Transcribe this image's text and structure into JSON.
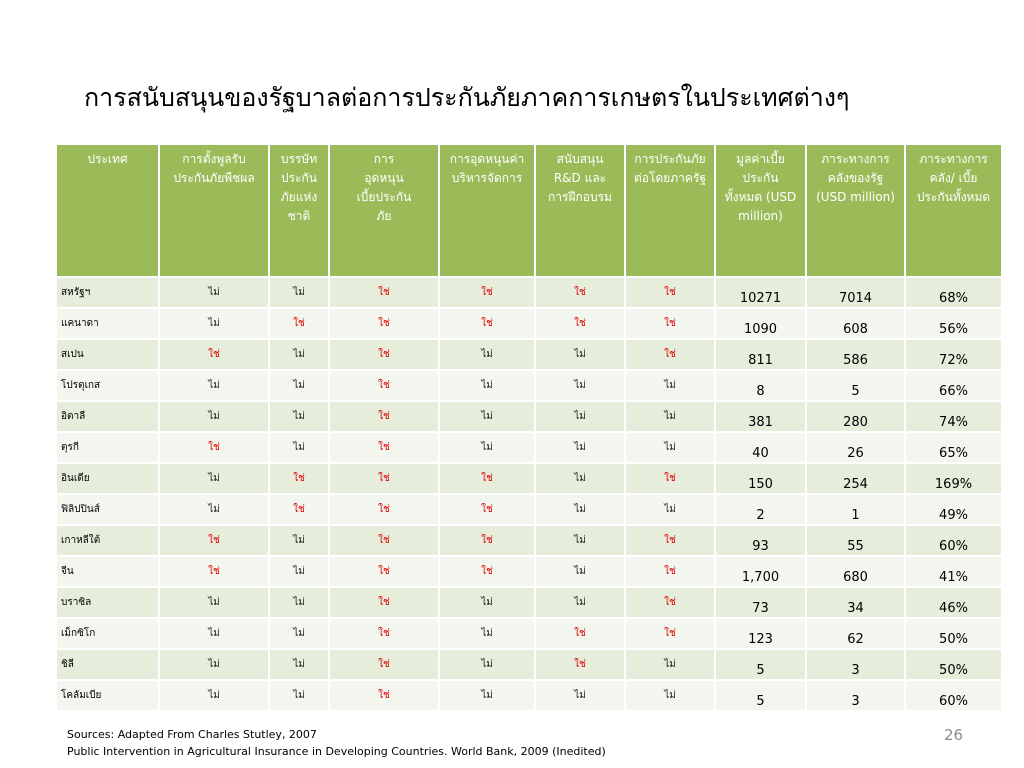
{
  "title": "การสนับสนุนของรัฐบาลต่อการประกันภัยภาคการเกษตรในประเทศต่างๆ",
  "headers": [
    "ประเทศ",
    "การตั้งพูลรับประกันภัยพืชผล",
    "บรรษัทประกันภัยแห่งชาติ",
    "การอุดหนุนเบี้ยประกันภัย",
    "การอุดหนุนค่าบริหารจัดการ",
    "สนับสนุน R&D และการฝึกอบรม",
    "การประกันภัยต่อโดยภาครัฐ",
    "มูลค่าเบี้ยประกันทั้งหมด (USD million)",
    "ภาระทางการคลังของรัฐ (USD million)",
    "ภาระทางการคลัง/ เบี้ยประกันทั้งหมด"
  ],
  "rows": [
    {
      "country": "สหรัฐฯ",
      "flags": [
        "ไม่",
        "ไม่",
        "ใช่",
        "ใช่",
        "ใช่",
        "ใช่"
      ],
      "premium": "10271",
      "burden": "7014",
      "ratio": "68%"
    },
    {
      "country": "แคนาดา",
      "flags": [
        "ไม่",
        "ใช่",
        "ใช่",
        "ใช่",
        "ใช่",
        "ใช่"
      ],
      "premium": "1090",
      "burden": "608",
      "ratio": "56%"
    },
    {
      "country": "สเปน",
      "flags": [
        "ใช่",
        "ไม่",
        "ใช่",
        "ไม่",
        "ไม่",
        "ใช่"
      ],
      "premium": "811",
      "burden": "586",
      "ratio": "72%"
    },
    {
      "country": "โปรตุเกส",
      "flags": [
        "ไม่",
        "ไม่",
        "ใช่",
        "ไม่",
        "ไม่",
        "ไม่"
      ],
      "premium": "8",
      "burden": "5",
      "ratio": "66%"
    },
    {
      "country": "อิตาลี",
      "flags": [
        "ไม่",
        "ไม่",
        "ใช่",
        "ไม่",
        "ไม่",
        "ไม่"
      ],
      "premium": "381",
      "burden": "280",
      "ratio": "74%"
    },
    {
      "country": "ตุรกี",
      "flags": [
        "ใช่",
        "ไม่",
        "ใช่",
        "ไม่",
        "ไม่",
        "ไม่"
      ],
      "premium": "40",
      "burden": "26",
      "ratio": "65%"
    },
    {
      "country": "อินเดีย",
      "flags": [
        "ไม่",
        "ใช่",
        "ใช่",
        "ใช่",
        "ไม่",
        "ใช่"
      ],
      "premium": "150",
      "burden": "254",
      "ratio": "169%"
    },
    {
      "country": "ฟิลิปปินส์",
      "flags": [
        "ไม่",
        "ใช่",
        "ใช่",
        "ใช่",
        "ไม่",
        "ไม่"
      ],
      "premium": "2",
      "burden": "1",
      "ratio": "49%"
    },
    {
      "country": "เกาหลีใต้",
      "flags": [
        "ใช่",
        "ไม่",
        "ใช่",
        "ใช่",
        "ไม่",
        "ใช่"
      ],
      "premium": "93",
      "burden": "55",
      "ratio": "60%"
    },
    {
      "country": "จีน",
      "flags": [
        "ใช่",
        "ไม่",
        "ใช่",
        "ใช่",
        "ไม่",
        "ใช่"
      ],
      "premium": "1,700",
      "burden": "680",
      "ratio": "41%"
    },
    {
      "country": "บราซิล",
      "flags": [
        "ไม่",
        "ไม่",
        "ใช่",
        "ไม่",
        "ไม่",
        "ใช่"
      ],
      "premium": "73",
      "burden": "34",
      "ratio": "46%"
    },
    {
      "country": "เม็กซิโก",
      "flags": [
        "ไม่",
        "ไม่",
        "ใช่",
        "ไม่",
        "ใช่",
        "ใช่"
      ],
      "premium": "123",
      "burden": "62",
      "ratio": "50%"
    },
    {
      "country": "ชิลี",
      "flags": [
        "ไม่",
        "ไม่",
        "ใช่",
        "ไม่",
        "ใช่",
        "ไม่"
      ],
      "premium": "5",
      "burden": "3",
      "ratio": "50%"
    },
    {
      "country": "โคลัมเบีย",
      "flags": [
        "ไม่",
        "ไม่",
        "ใช่",
        "ไม่",
        "ไม่",
        "ไม่"
      ],
      "premium": "5",
      "burden": "3",
      "ratio": "60%"
    }
  ],
  "sources_line1": "Sources: Adapted From Charles Stutley,  2007",
  "sources_line2": "Public Intervention in Agricultural Insurance in Developing Countries. World Bank, 2009 (Inedited)",
  "page_number": "26",
  "colors": {
    "header_bg": "#9bbb59",
    "row_odd": "#e6eedb",
    "row_even": "#f3f6ee",
    "yes": "#e00000",
    "no": "#222222"
  }
}
